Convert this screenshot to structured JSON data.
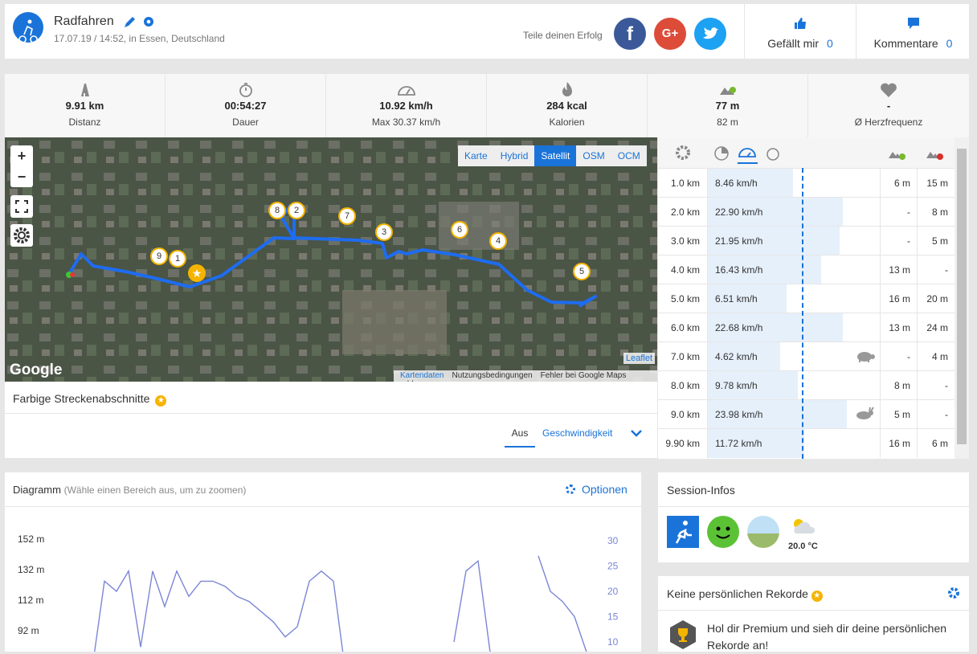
{
  "header": {
    "activity": "Radfahren",
    "meta": "17.07.19 / 14:52, in Essen, Deutschland",
    "share": "Teile deinen Erfolg",
    "likes_label": "Gefällt mir",
    "likes": 0,
    "comments_label": "Kommentare",
    "comments": 0
  },
  "stats": [
    {
      "value": "9.91 km",
      "label": "Distanz"
    },
    {
      "value": "00:54:27",
      "label": "Dauer"
    },
    {
      "value": "10.92 km/h",
      "label": "Max 30.37 km/h"
    },
    {
      "value": "284 kcal",
      "label": "Kalorien"
    },
    {
      "value": "77 m",
      "label": "82 m"
    },
    {
      "value": "-",
      "label": "Ø Herzfrequenz"
    }
  ],
  "map": {
    "layers": [
      "Karte",
      "Hybrid",
      "Satellit",
      "OSM",
      "OCM"
    ],
    "active_layer": 2,
    "markers": [
      "9",
      "1",
      "8",
      "2",
      "7",
      "3",
      "6",
      "4",
      "5"
    ],
    "logo": "Google",
    "leaflet": "Leaflet",
    "footer": [
      "Kartendaten",
      "Nutzungsbedingungen",
      "Fehler bei Google Maps melden"
    ]
  },
  "segments": {
    "title": "Farbige Streckenabschnitte",
    "options": [
      "Aus",
      "Geschwindigkeit"
    ]
  },
  "splits": {
    "rows": [
      [
        "1.0 km",
        "8.46 km/h",
        "6 m",
        "15 m"
      ],
      [
        "2.0 km",
        "22.90 km/h",
        "-",
        "8 m"
      ],
      [
        "3.0 km",
        "21.95 km/h",
        "-",
        "5 m"
      ],
      [
        "4.0 km",
        "16.43 km/h",
        "13 m",
        "-"
      ],
      [
        "5.0 km",
        "6.51 km/h",
        "16 m",
        "20 m"
      ],
      [
        "6.0 km",
        "22.68 km/h",
        "13 m",
        "24 m"
      ],
      [
        "7.0 km",
        "4.62 km/h",
        "-",
        "4 m"
      ],
      [
        "8.0 km",
        "9.78 km/h",
        "8 m",
        "-"
      ],
      [
        "9.0 km",
        "23.98 km/h",
        "5 m",
        "-"
      ],
      [
        "9.90 km",
        "11.72 km/h",
        "16 m",
        "6 m"
      ]
    ]
  },
  "diagram": {
    "title": "Diagramm",
    "hint": "(Wähle einen Bereich aus, um zu zoomen)",
    "options": "Optionen",
    "ylim": [
      92,
      152
    ],
    "yticks": [
      {
        "value": 152,
        "label": "152 m"
      },
      {
        "value": 132,
        "label": "132 m"
      },
      {
        "value": 112,
        "label": "112 m"
      },
      {
        "value": 92,
        "label": "92 m"
      }
    ],
    "y2lim": [
      10,
      30
    ],
    "y2ticks": [
      30,
      25,
      20,
      15,
      10
    ],
    "series": {
      "color": "#7b86d6",
      "values": [
        5,
        22,
        20,
        24,
        9,
        24,
        17,
        24,
        19,
        22,
        22,
        21,
        19,
        18,
        16,
        14,
        11,
        13,
        22,
        24,
        22,
        4,
        null,
        null,
        null,
        null,
        null,
        null,
        null,
        null,
        10,
        24,
        26,
        8,
        null,
        null,
        null,
        27,
        20,
        18,
        15,
        8
      ]
    }
  },
  "session": {
    "title": "Session-Infos",
    "temperature": "20.0 °C"
  },
  "records": {
    "title": "Keine persönlichen Rekorde",
    "text": "Hol dir Premium und sieh dir deine persönlichen Rekorde an!"
  }
}
